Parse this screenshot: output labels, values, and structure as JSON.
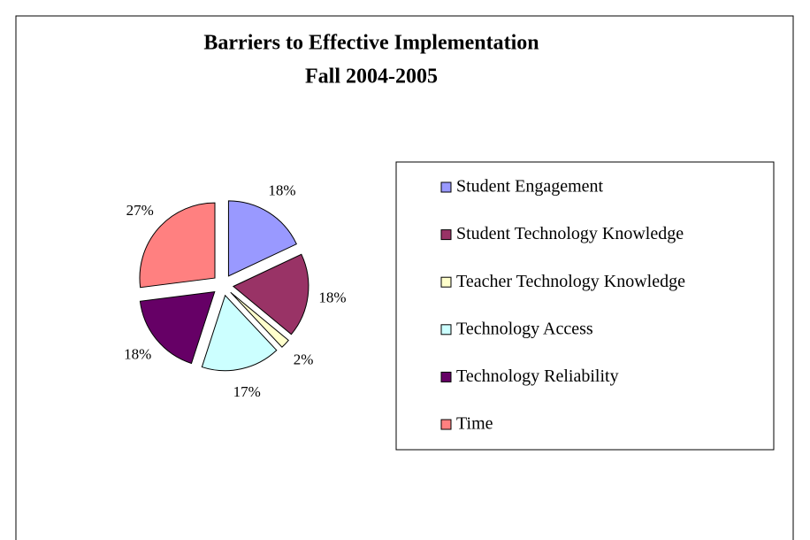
{
  "chart_data": {
    "type": "pie",
    "title": "Barriers to Effective Implementation",
    "subtitle": "Fall 2004-2005",
    "categories": [
      "Student Engagement",
      "Student Technology Knowledge",
      "Teacher Technology Knowledge",
      "Technology Access",
      "Technology Reliability",
      "Time"
    ],
    "values": [
      18,
      18,
      2,
      17,
      18,
      27
    ],
    "value_labels": [
      "18%",
      "18%",
      "2%",
      "17%",
      "18%",
      "27%"
    ],
    "colors": [
      "#9999ff",
      "#993366",
      "#ffffcc",
      "#ccffff",
      "#660066",
      "#ff8080"
    ],
    "legend": "right"
  }
}
